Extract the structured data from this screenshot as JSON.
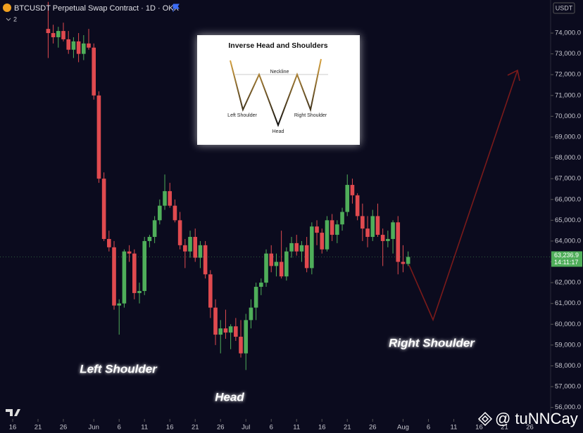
{
  "chart_data": {
    "type": "candlestick",
    "title": "BTCUSDT Perpetual Swap Contract · 1D · OKX",
    "indicator_count": 2,
    "currency": "USDT",
    "up_color": "#4fae5a",
    "down_color": "#e04a4f",
    "x": [
      7,
      8,
      9,
      10,
      11,
      12,
      13,
      14,
      15,
      16,
      17,
      18,
      19,
      20,
      21,
      22,
      23,
      24,
      25,
      26,
      27,
      28,
      29,
      30,
      31,
      32,
      33,
      34,
      35,
      36,
      37,
      38,
      39,
      40,
      41,
      42,
      43,
      44,
      45,
      46,
      47,
      48,
      49,
      50,
      51,
      52,
      53,
      54,
      55,
      56,
      57,
      58,
      59,
      60,
      61,
      62,
      63,
      64,
      65,
      66,
      67,
      68,
      69,
      70,
      71,
      72,
      73,
      74,
      75,
      76,
      77,
      78
    ],
    "open": [
      74200,
      74000,
      73800,
      74100,
      73700,
      73200,
      73600,
      73000,
      73500,
      73300,
      71000,
      67000,
      64100,
      63700,
      60900,
      61000,
      63500,
      63400,
      61500,
      61600,
      64000,
      64200,
      65000,
      65700,
      66400,
      65700,
      65000,
      63800,
      63500,
      64200,
      63200,
      63800,
      62400,
      60800,
      59500,
      59800,
      59600,
      59900,
      59400,
      58600,
      60200,
      60800,
      61800,
      62000,
      63400,
      62800,
      63000,
      62300,
      63500,
      63900,
      63500,
      63800,
      62700,
      64700,
      64400,
      63600,
      65000,
      64300,
      64800,
      65400,
      66700,
      66200,
      65200,
      64600,
      64200,
      65200,
      64300,
      64000,
      64100,
      64900,
      63000,
      62900
    ],
    "high": [
      75500,
      74400,
      74300,
      74500,
      74100,
      73800,
      74000,
      73900,
      74200,
      73500,
      71200,
      67300,
      64500,
      64000,
      61200,
      63600,
      63800,
      63600,
      62000,
      64200,
      64300,
      65200,
      66000,
      67200,
      66800,
      66000,
      65400,
      64100,
      64500,
      64600,
      64000,
      64000,
      62600,
      61200,
      60200,
      60700,
      60000,
      60300,
      60200,
      60500,
      61200,
      62000,
      62200,
      63600,
      63800,
      63400,
      64500,
      63700,
      64200,
      64300,
      64000,
      64200,
      64900,
      65000,
      64600,
      65200,
      65300,
      65000,
      65600,
      67200,
      67000,
      66300,
      65800,
      65200,
      65500,
      65800,
      64600,
      64500,
      65000,
      65200,
      63800,
      63500
    ],
    "low": [
      72800,
      73500,
      73300,
      73600,
      73000,
      72800,
      72600,
      72700,
      73200,
      70800,
      66800,
      64000,
      63500,
      60700,
      59500,
      60800,
      63000,
      61200,
      61000,
      61400,
      63700,
      63900,
      64800,
      65500,
      65600,
      64900,
      63600,
      62700,
      63200,
      63000,
      62700,
      62200,
      60300,
      59000,
      58600,
      59300,
      58800,
      59200,
      58400,
      57800,
      59800,
      60200,
      61400,
      61800,
      62500,
      62300,
      62200,
      62100,
      63200,
      63300,
      63000,
      62500,
      62400,
      63800,
      63400,
      63500,
      64000,
      63900,
      64500,
      65200,
      65800,
      65000,
      64000,
      63700,
      64000,
      64200,
      62800,
      63700,
      63400,
      62400,
      62500,
      62800
    ],
    "close": [
      74000,
      73800,
      74100,
      73700,
      73200,
      73600,
      73000,
      73500,
      73300,
      71000,
      67000,
      64100,
      63700,
      60900,
      61000,
      63500,
      63400,
      61500,
      61600,
      64000,
      64200,
      65000,
      65700,
      66400,
      65700,
      65000,
      63800,
      63500,
      64200,
      63200,
      63800,
      62400,
      60800,
      59500,
      59800,
      59600,
      59900,
      59400,
      58600,
      60200,
      60800,
      61800,
      62000,
      63400,
      62800,
      63000,
      62300,
      63500,
      63900,
      63500,
      63800,
      62700,
      64700,
      64400,
      63600,
      65000,
      64300,
      64800,
      65400,
      66700,
      66200,
      65200,
      64600,
      64200,
      65200,
      64300,
      64000,
      64100,
      64900,
      63000,
      62900,
      63236.9
    ],
    "last_price": {
      "value": 63236.9,
      "label": "63,236.9"
    },
    "countdown": "14:11:17",
    "xlim": [
      -2.5,
      106.1
    ],
    "xticks": [
      {
        "value": 0,
        "label": "16"
      },
      {
        "value": 5,
        "label": "21"
      },
      {
        "value": 10,
        "label": "26"
      },
      {
        "value": 16,
        "label": "Jun"
      },
      {
        "value": 21,
        "label": "6"
      },
      {
        "value": 26,
        "label": "11"
      },
      {
        "value": 31,
        "label": "16"
      },
      {
        "value": 36,
        "label": "21"
      },
      {
        "value": 41,
        "label": "26"
      },
      {
        "value": 46,
        "label": "Jul"
      },
      {
        "value": 51,
        "label": "6"
      },
      {
        "value": 56,
        "label": "11"
      },
      {
        "value": 61,
        "label": "16"
      },
      {
        "value": 66,
        "label": "21"
      },
      {
        "value": 71,
        "label": "26"
      },
      {
        "value": 77,
        "label": "Aug"
      },
      {
        "value": 82,
        "label": "6"
      },
      {
        "value": 87,
        "label": "11"
      },
      {
        "value": 92,
        "label": "16"
      },
      {
        "value": 97,
        "label": "21"
      },
      {
        "value": 102,
        "label": "26"
      }
    ],
    "ylim": [
      55650,
      75590
    ],
    "yticks": [
      {
        "value": 56000,
        "label": "56,000.0"
      },
      {
        "value": 57000,
        "label": "57,000.0"
      },
      {
        "value": 58000,
        "label": "58,000.0"
      },
      {
        "value": 59000,
        "label": "59,000.0"
      },
      {
        "value": 60000,
        "label": "60,000.0"
      },
      {
        "value": 61000,
        "label": "61,000.0"
      },
      {
        "value": 62000,
        "label": "62,000.0"
      },
      {
        "value": 63000,
        "label": "63,000.0"
      },
      {
        "value": 64000,
        "label": "64,000.0"
      },
      {
        "value": 65000,
        "label": "65,000.0"
      },
      {
        "value": 66000,
        "label": "66,000.0"
      },
      {
        "value": 67000,
        "label": "67,000.0"
      },
      {
        "value": 68000,
        "label": "68,000.0"
      },
      {
        "value": 69000,
        "label": "69,000.0"
      },
      {
        "value": 70000,
        "label": "70,000.0"
      },
      {
        "value": 71000,
        "label": "71,000.0"
      },
      {
        "value": 72000,
        "label": "72,000.0"
      },
      {
        "value": 73000,
        "label": "73,000.0"
      },
      {
        "value": 74000,
        "label": "74,000.0"
      }
    ],
    "annotations": [
      "Left Shoulder",
      "Head",
      "Right Shoulder"
    ],
    "inset": {
      "title": "Inverse Head and Shoulders",
      "neckline": "Neckline",
      "left_shoulder": "Left Shoulder",
      "head": "Head",
      "right_shoulder": "Right Shoulder"
    }
  },
  "watermark": "@ tuNNCay"
}
